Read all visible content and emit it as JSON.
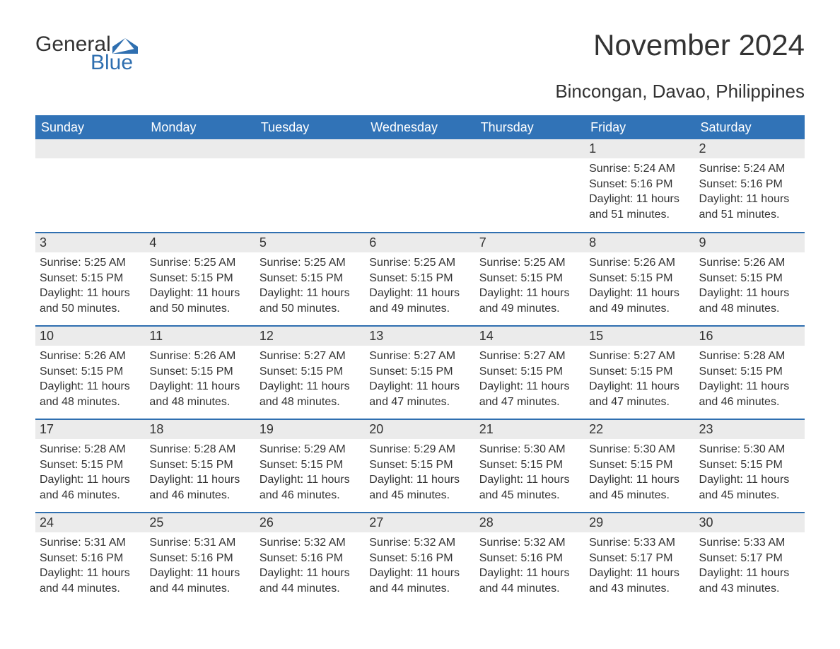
{
  "logo": {
    "word1": "General",
    "word2": "Blue",
    "icon_color": "#2f6fb0"
  },
  "title": "November 2024",
  "subtitle": "Bincongan, Davao, Philippines",
  "colors": {
    "header_bg": "#3173b7",
    "header_text": "#ffffff",
    "row_border": "#2f6fb0",
    "daynum_bg": "#ebebeb",
    "text": "#333333",
    "background": "#ffffff"
  },
  "layout": {
    "columns": 7,
    "rows": 5,
    "font_family": "Arial",
    "title_fontsize": 42,
    "subtitle_fontsize": 26,
    "header_fontsize": 18,
    "daynum_fontsize": 18,
    "details_fontsize": 16
  },
  "weekdays": [
    "Sunday",
    "Monday",
    "Tuesday",
    "Wednesday",
    "Thursday",
    "Friday",
    "Saturday"
  ],
  "weeks": [
    [
      {
        "empty": true
      },
      {
        "empty": true
      },
      {
        "empty": true
      },
      {
        "empty": true
      },
      {
        "empty": true
      },
      {
        "day": "1",
        "sunrise": "Sunrise: 5:24 AM",
        "sunset": "Sunset: 5:16 PM",
        "daylight": "Daylight: 11 hours and 51 minutes."
      },
      {
        "day": "2",
        "sunrise": "Sunrise: 5:24 AM",
        "sunset": "Sunset: 5:16 PM",
        "daylight": "Daylight: 11 hours and 51 minutes."
      }
    ],
    [
      {
        "day": "3",
        "sunrise": "Sunrise: 5:25 AM",
        "sunset": "Sunset: 5:15 PM",
        "daylight": "Daylight: 11 hours and 50 minutes."
      },
      {
        "day": "4",
        "sunrise": "Sunrise: 5:25 AM",
        "sunset": "Sunset: 5:15 PM",
        "daylight": "Daylight: 11 hours and 50 minutes."
      },
      {
        "day": "5",
        "sunrise": "Sunrise: 5:25 AM",
        "sunset": "Sunset: 5:15 PM",
        "daylight": "Daylight: 11 hours and 50 minutes."
      },
      {
        "day": "6",
        "sunrise": "Sunrise: 5:25 AM",
        "sunset": "Sunset: 5:15 PM",
        "daylight": "Daylight: 11 hours and 49 minutes."
      },
      {
        "day": "7",
        "sunrise": "Sunrise: 5:25 AM",
        "sunset": "Sunset: 5:15 PM",
        "daylight": "Daylight: 11 hours and 49 minutes."
      },
      {
        "day": "8",
        "sunrise": "Sunrise: 5:26 AM",
        "sunset": "Sunset: 5:15 PM",
        "daylight": "Daylight: 11 hours and 49 minutes."
      },
      {
        "day": "9",
        "sunrise": "Sunrise: 5:26 AM",
        "sunset": "Sunset: 5:15 PM",
        "daylight": "Daylight: 11 hours and 48 minutes."
      }
    ],
    [
      {
        "day": "10",
        "sunrise": "Sunrise: 5:26 AM",
        "sunset": "Sunset: 5:15 PM",
        "daylight": "Daylight: 11 hours and 48 minutes."
      },
      {
        "day": "11",
        "sunrise": "Sunrise: 5:26 AM",
        "sunset": "Sunset: 5:15 PM",
        "daylight": "Daylight: 11 hours and 48 minutes."
      },
      {
        "day": "12",
        "sunrise": "Sunrise: 5:27 AM",
        "sunset": "Sunset: 5:15 PM",
        "daylight": "Daylight: 11 hours and 48 minutes."
      },
      {
        "day": "13",
        "sunrise": "Sunrise: 5:27 AM",
        "sunset": "Sunset: 5:15 PM",
        "daylight": "Daylight: 11 hours and 47 minutes."
      },
      {
        "day": "14",
        "sunrise": "Sunrise: 5:27 AM",
        "sunset": "Sunset: 5:15 PM",
        "daylight": "Daylight: 11 hours and 47 minutes."
      },
      {
        "day": "15",
        "sunrise": "Sunrise: 5:27 AM",
        "sunset": "Sunset: 5:15 PM",
        "daylight": "Daylight: 11 hours and 47 minutes."
      },
      {
        "day": "16",
        "sunrise": "Sunrise: 5:28 AM",
        "sunset": "Sunset: 5:15 PM",
        "daylight": "Daylight: 11 hours and 46 minutes."
      }
    ],
    [
      {
        "day": "17",
        "sunrise": "Sunrise: 5:28 AM",
        "sunset": "Sunset: 5:15 PM",
        "daylight": "Daylight: 11 hours and 46 minutes."
      },
      {
        "day": "18",
        "sunrise": "Sunrise: 5:28 AM",
        "sunset": "Sunset: 5:15 PM",
        "daylight": "Daylight: 11 hours and 46 minutes."
      },
      {
        "day": "19",
        "sunrise": "Sunrise: 5:29 AM",
        "sunset": "Sunset: 5:15 PM",
        "daylight": "Daylight: 11 hours and 46 minutes."
      },
      {
        "day": "20",
        "sunrise": "Sunrise: 5:29 AM",
        "sunset": "Sunset: 5:15 PM",
        "daylight": "Daylight: 11 hours and 45 minutes."
      },
      {
        "day": "21",
        "sunrise": "Sunrise: 5:30 AM",
        "sunset": "Sunset: 5:15 PM",
        "daylight": "Daylight: 11 hours and 45 minutes."
      },
      {
        "day": "22",
        "sunrise": "Sunrise: 5:30 AM",
        "sunset": "Sunset: 5:15 PM",
        "daylight": "Daylight: 11 hours and 45 minutes."
      },
      {
        "day": "23",
        "sunrise": "Sunrise: 5:30 AM",
        "sunset": "Sunset: 5:15 PM",
        "daylight": "Daylight: 11 hours and 45 minutes."
      }
    ],
    [
      {
        "day": "24",
        "sunrise": "Sunrise: 5:31 AM",
        "sunset": "Sunset: 5:16 PM",
        "daylight": "Daylight: 11 hours and 44 minutes."
      },
      {
        "day": "25",
        "sunrise": "Sunrise: 5:31 AM",
        "sunset": "Sunset: 5:16 PM",
        "daylight": "Daylight: 11 hours and 44 minutes."
      },
      {
        "day": "26",
        "sunrise": "Sunrise: 5:32 AM",
        "sunset": "Sunset: 5:16 PM",
        "daylight": "Daylight: 11 hours and 44 minutes."
      },
      {
        "day": "27",
        "sunrise": "Sunrise: 5:32 AM",
        "sunset": "Sunset: 5:16 PM",
        "daylight": "Daylight: 11 hours and 44 minutes."
      },
      {
        "day": "28",
        "sunrise": "Sunrise: 5:32 AM",
        "sunset": "Sunset: 5:16 PM",
        "daylight": "Daylight: 11 hours and 44 minutes."
      },
      {
        "day": "29",
        "sunrise": "Sunrise: 5:33 AM",
        "sunset": "Sunset: 5:17 PM",
        "daylight": "Daylight: 11 hours and 43 minutes."
      },
      {
        "day": "30",
        "sunrise": "Sunrise: 5:33 AM",
        "sunset": "Sunset: 5:17 PM",
        "daylight": "Daylight: 11 hours and 43 minutes."
      }
    ]
  ]
}
